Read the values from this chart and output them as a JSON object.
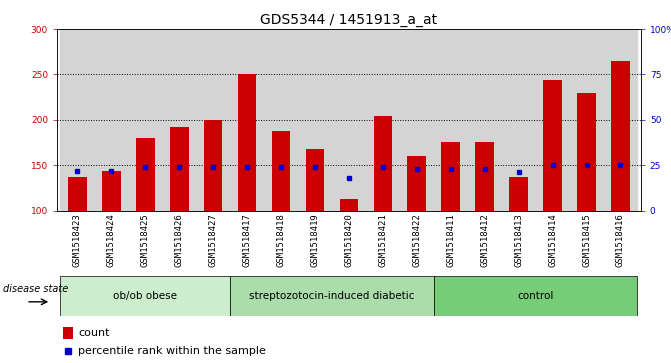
{
  "title": "GDS5344 / 1451913_a_at",
  "samples": [
    "GSM1518423",
    "GSM1518424",
    "GSM1518425",
    "GSM1518426",
    "GSM1518427",
    "GSM1518417",
    "GSM1518418",
    "GSM1518419",
    "GSM1518420",
    "GSM1518421",
    "GSM1518422",
    "GSM1518411",
    "GSM1518412",
    "GSM1518413",
    "GSM1518414",
    "GSM1518415",
    "GSM1518416"
  ],
  "counts": [
    137,
    144,
    180,
    192,
    200,
    250,
    188,
    168,
    113,
    204,
    160,
    175,
    175,
    137,
    244,
    229,
    265
  ],
  "percentile_ranks": [
    22,
    22,
    24,
    24,
    24,
    24,
    24,
    24,
    18,
    24,
    23,
    23,
    23,
    21,
    25,
    25,
    25
  ],
  "groups": [
    {
      "label": "ob/ob obese",
      "start": 0,
      "end": 5
    },
    {
      "label": "streptozotocin-induced diabetic",
      "start": 5,
      "end": 11
    },
    {
      "label": "control",
      "start": 11,
      "end": 17
    }
  ],
  "group_colors": [
    "#cceecc",
    "#aaddaa",
    "#77cc77"
  ],
  "ylim_left": [
    100,
    300
  ],
  "ylim_right": [
    0,
    100
  ],
  "yticks_left": [
    100,
    150,
    200,
    250,
    300
  ],
  "yticks_right": [
    0,
    25,
    50,
    75,
    100
  ],
  "bar_color": "#cc0000",
  "percentile_color": "#0000cc",
  "col_bg_color": "#d4d4d4",
  "plot_bg_color": "#ffffff",
  "legend_count_label": "count",
  "legend_pct_label": "percentile rank within the sample",
  "disease_state_label": "disease state",
  "title_fontsize": 10,
  "tick_fontsize": 6.5,
  "group_label_fontsize": 7.5,
  "legend_fontsize": 8
}
